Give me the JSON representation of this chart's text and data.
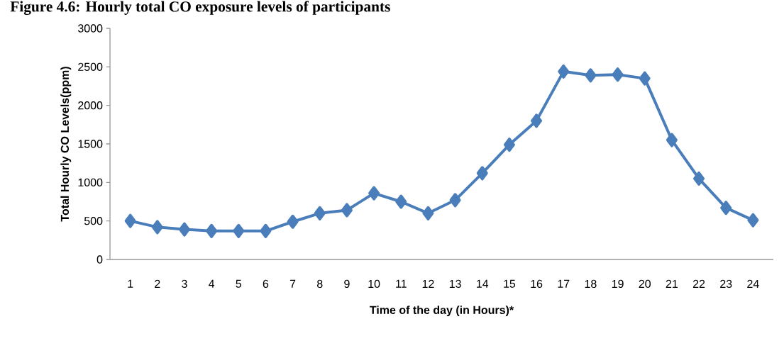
{
  "chart_data": {
    "type": "line",
    "title": "Figure 4.6: Hourly total CO exposure levels of participants",
    "xlabel": "Time of the day (in  Hours)*",
    "ylabel": "Total Hourly CO Levels(ppm)",
    "categories": [
      "1",
      "2",
      "3",
      "4",
      "5",
      "6",
      "7",
      "8",
      "9",
      "10",
      "11",
      "12",
      "13",
      "14",
      "15",
      "16",
      "17",
      "18",
      "19",
      "20",
      "21",
      "22",
      "23",
      "24"
    ],
    "series": [
      {
        "color": "#4a7ebb",
        "values": [
          500,
          420,
          390,
          370,
          370,
          370,
          490,
          600,
          640,
          860,
          750,
          600,
          770,
          1120,
          1490,
          1800,
          2440,
          2390,
          2400,
          2350,
          1550,
          1050,
          670,
          510
        ]
      }
    ],
    "ylim": [
      0,
      3000
    ],
    "yticks": [
      0,
      500,
      1000,
      1500,
      2000,
      2500,
      3000
    ],
    "marker": "diamond",
    "line_style": "solid",
    "grid": false
  }
}
